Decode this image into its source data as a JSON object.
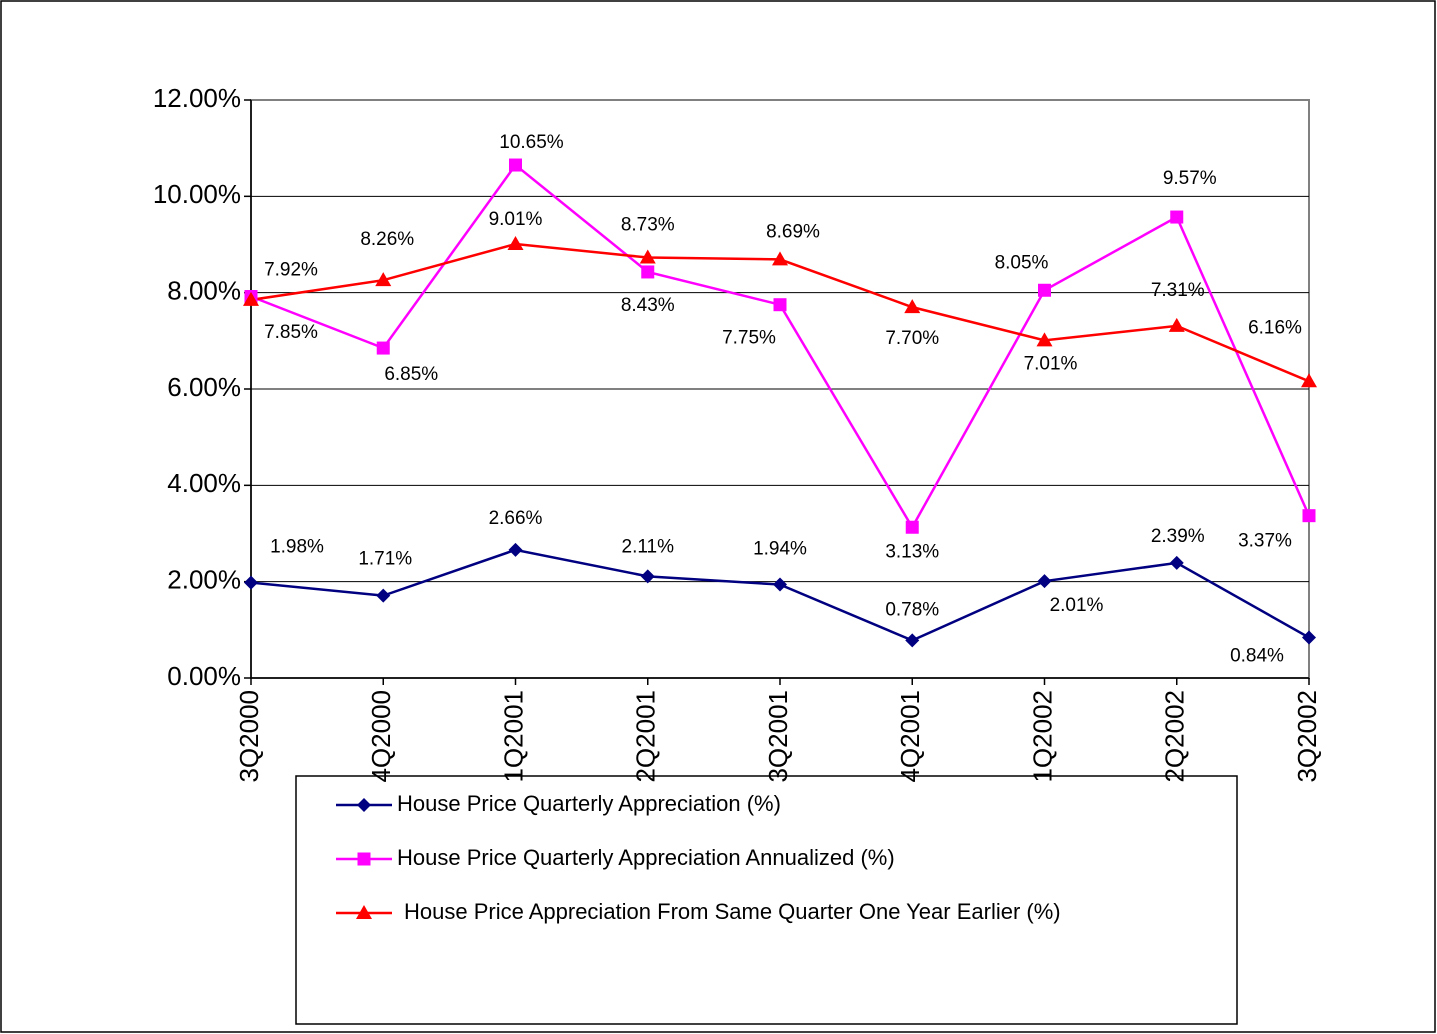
{
  "chart_data": {
    "type": "line",
    "categories": [
      "3Q2000",
      "4Q2000",
      "1Q2001",
      "2Q2001",
      "3Q2001",
      "4Q2001",
      "1Q2002",
      "2Q2002",
      "3Q2002"
    ],
    "series": [
      {
        "name": "House Price Quarterly Appreciation (%)",
        "color": "#000080",
        "marker": "diamond",
        "values": [
          1.98,
          1.71,
          2.66,
          2.11,
          1.94,
          0.78,
          2.01,
          2.39,
          0.84
        ],
        "value_labels": [
          "1.98%",
          "1.71%",
          "2.66%",
          "2.11%",
          "1.94%",
          "0.78%",
          "2.01%",
          "2.39%",
          "0.84%"
        ]
      },
      {
        "name": "House Price Quarterly Appreciation Annualized (%)",
        "color": "#ff00ff",
        "marker": "square",
        "values": [
          7.92,
          6.85,
          10.65,
          8.43,
          7.75,
          3.13,
          8.05,
          9.57,
          3.37
        ],
        "value_labels": [
          "7.92%",
          "6.85%",
          "10.65%",
          "8.43%",
          "7.75%",
          "3.13%",
          "8.05%",
          "9.57%",
          "3.37%"
        ]
      },
      {
        "name": "House Price Appreciation From Same Quarter One Year Earlier (%)",
        "color": "#ff0000",
        "marker": "triangle",
        "values": [
          7.85,
          8.26,
          9.01,
          8.73,
          8.69,
          7.7,
          7.01,
          7.31,
          6.16
        ],
        "value_labels": [
          "7.85%",
          "8.26%",
          "9.01%",
          "8.73%",
          "8.69%",
          "7.70%",
          "7.01%",
          "7.31%",
          "6.16%"
        ]
      }
    ],
    "ylim": [
      0,
      12
    ],
    "yticks": [
      {
        "value": 0,
        "label": "0.00%"
      },
      {
        "value": 2,
        "label": "2.00%"
      },
      {
        "value": 4,
        "label": "4.00%"
      },
      {
        "value": 6,
        "label": "6.00%"
      },
      {
        "value": 8,
        "label": "8.00%"
      },
      {
        "value": 10,
        "label": "10.00%"
      },
      {
        "value": 12,
        "label": "12.00%"
      }
    ],
    "grid": true,
    "legend": "bottom"
  }
}
